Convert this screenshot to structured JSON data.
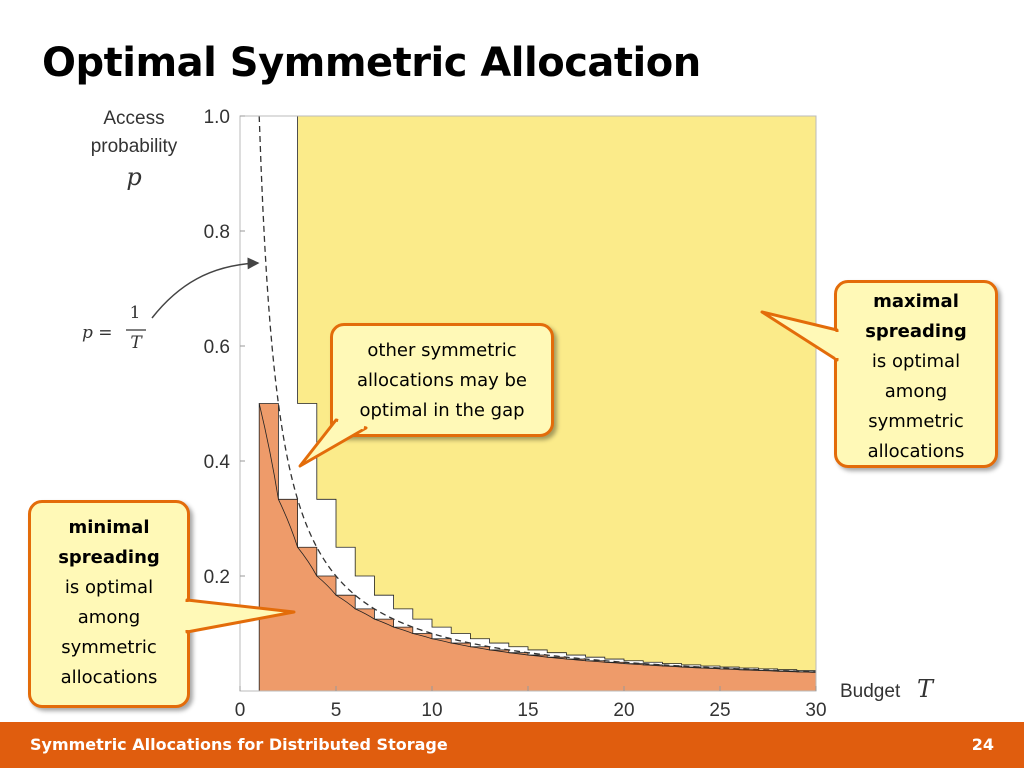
{
  "slide": {
    "title": "Optimal Symmetric Allocation",
    "footer_title": "Symmetric Allocations for Distributed Storage",
    "page_number": "24"
  },
  "callouts": {
    "gap": {
      "lines": [
        "other symmetric",
        "allocations may be",
        "optimal in the gap"
      ]
    },
    "maximal": {
      "bold": [
        "maximal",
        "spreading"
      ],
      "lines": [
        "is optimal",
        "among",
        "symmetric",
        "allocations"
      ]
    },
    "minimal": {
      "bold": [
        "minimal",
        "spreading"
      ],
      "lines": [
        "is optimal",
        "among",
        "symmetric",
        "allocations"
      ]
    }
  },
  "colors": {
    "maximal_region": "#fbeb8a",
    "minimal_region": "#ee9b6a",
    "callout_border": "#e36c0a",
    "callout_fill": "#fff9b7",
    "footer": "#e05d0e"
  },
  "chart_data": {
    "type": "area",
    "ylabel": [
      "Access",
      "probability"
    ],
    "ylabel_symbol": "p",
    "xlabel": "Budget",
    "xlabel_symbol": "T",
    "curve_label": {
      "lhs": "p =",
      "numerator": "1",
      "denominator": "T"
    },
    "xlim": [
      0,
      30
    ],
    "ylim": [
      0,
      1
    ],
    "x_ticks": [
      0,
      5,
      10,
      15,
      20,
      25,
      30
    ],
    "x_tick_labels": [
      "0",
      "5",
      "10",
      "15",
      "20",
      "25",
      "30"
    ],
    "y_ticks": [
      0.2,
      0.4,
      0.6,
      0.8,
      1.0
    ],
    "y_tick_labels": [
      "0.2",
      "0.4",
      "0.6",
      "0.8",
      "1.0"
    ],
    "reference_curve": {
      "formula": "p = 1/T",
      "style": "dashed"
    },
    "regions": [
      {
        "name": "maximal spreading",
        "color": "#fbeb8a"
      },
      {
        "name": "minimal spreading",
        "color": "#ee9b6a"
      },
      {
        "name": "gap",
        "color": "#ffffff"
      }
    ]
  }
}
